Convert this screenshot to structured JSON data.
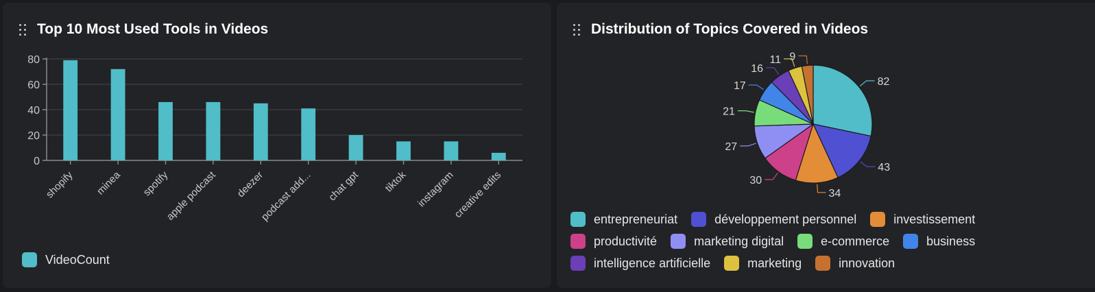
{
  "panels": {
    "left": {
      "title": "Top 10 Most Used Tools in Videos"
    },
    "right": {
      "title": "Distribution of Topics Covered in Videos"
    }
  },
  "chart_data": [
    {
      "type": "bar",
      "title": "Top 10 Most Used Tools in Videos",
      "xlabel": "",
      "ylabel": "",
      "categories": [
        "shopify",
        "minea",
        "spotify",
        "apple podcast",
        "deezer",
        "podcast add...",
        "chat gpt",
        "tiktok",
        "instagram",
        "creative edits"
      ],
      "series": [
        {
          "name": "VideoCount",
          "color": "#51bdc8",
          "values": [
            79,
            72,
            46,
            46,
            45,
            41,
            20,
            15,
            15,
            6
          ]
        }
      ],
      "ylim": [
        0,
        80
      ],
      "yticks": [
        0,
        20,
        40,
        60,
        80
      ],
      "grid": true,
      "legend": "bottom-left"
    },
    {
      "type": "pie",
      "title": "Distribution of Topics Covered in Videos",
      "labels": [
        "entrepreneuriat",
        "développement personnel",
        "investissement",
        "productivité",
        "marketing digital",
        "e-commerce",
        "business",
        "intelligence artificielle",
        "marketing",
        "innovation"
      ],
      "values": [
        82,
        43,
        34,
        30,
        27,
        21,
        17,
        16,
        11,
        9
      ],
      "colors": [
        "#51bdc8",
        "#5050d3",
        "#e38d39",
        "#cc4189",
        "#8f8ff3",
        "#79dc7a",
        "#4285e8",
        "#6a3fb8",
        "#dcc23f",
        "#c6712f"
      ],
      "legend": "bottom"
    }
  ]
}
